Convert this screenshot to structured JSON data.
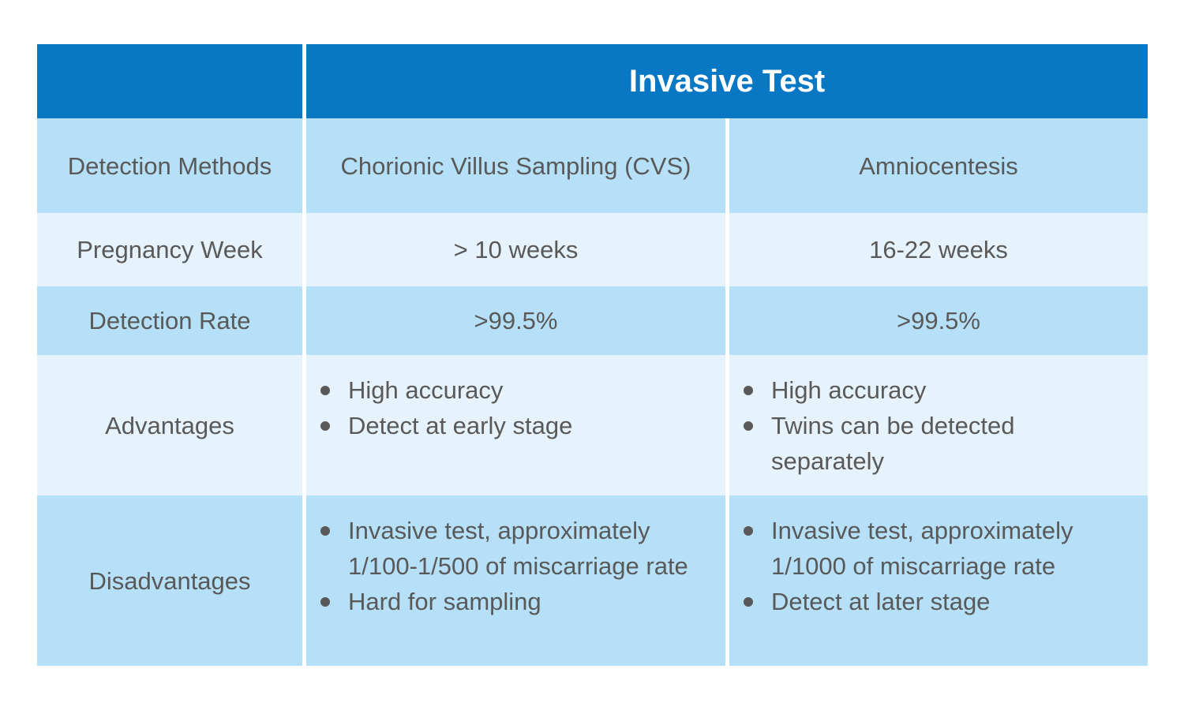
{
  "table": {
    "header": {
      "title": "Invasive Test"
    },
    "rows": {
      "detection_methods": {
        "label": "Detection Methods",
        "cvs": "Chorionic Villus Sampling (CVS)",
        "amnio": "Amniocentesis"
      },
      "pregnancy_week": {
        "label": "Pregnancy Week",
        "cvs": "> 10 weeks",
        "amnio": "16-22 weeks"
      },
      "detection_rate": {
        "label": "Detection Rate",
        "cvs": ">99.5%",
        "amnio": ">99.5%"
      },
      "advantages": {
        "label": "Advantages",
        "cvs": [
          "High accuracy",
          "Detect at early stage"
        ],
        "amnio": [
          "High accuracy",
          "Twins can be detected separately"
        ]
      },
      "disadvantages": {
        "label": "Disadvantages",
        "cvs": [
          "Invasive test, approximately 1/100-1/500 of miscarriage rate",
          "Hard for sampling"
        ],
        "amnio": [
          "Invasive test, approximately 1/1000 of miscarriage rate",
          "Detect at later stage"
        ]
      }
    }
  },
  "colors": {
    "header_bg": "#0877C4",
    "band_strong": "#B5E0F7",
    "band_light": "#E6F3FC",
    "header_text": "#FFFFFF",
    "body_text": "#595959",
    "page_bg": "#FFFFFF"
  }
}
